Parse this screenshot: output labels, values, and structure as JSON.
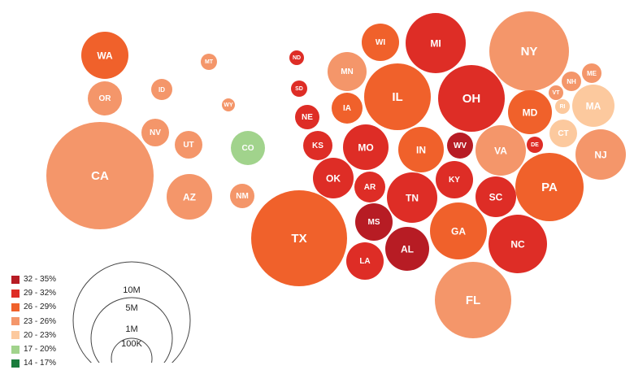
{
  "legend": {
    "color_bins": [
      {
        "label": "32 - 35%",
        "color": "#b71c24"
      },
      {
        "label": "29 - 32%",
        "color": "#de2d26"
      },
      {
        "label": "26 - 29%",
        "color": "#f0612b"
      },
      {
        "label": "23 - 26%",
        "color": "#f4966a"
      },
      {
        "label": "20 - 23%",
        "color": "#fcc99e"
      },
      {
        "label": "17 - 20%",
        "color": "#a1d38c"
      },
      {
        "label": "14 - 17%",
        "color": "#1a7c3c"
      }
    ],
    "size_labels": [
      "10M",
      "5M",
      "1M",
      "100K"
    ]
  },
  "states": [
    {
      "abbr": "WA",
      "bin": 2
    },
    {
      "abbr": "OR",
      "bin": 3
    },
    {
      "abbr": "CA",
      "bin": 3
    },
    {
      "abbr": "NV",
      "bin": 3
    },
    {
      "abbr": "ID",
      "bin": 3
    },
    {
      "abbr": "MT",
      "bin": 3
    },
    {
      "abbr": "WY",
      "bin": 3
    },
    {
      "abbr": "UT",
      "bin": 3
    },
    {
      "abbr": "AZ",
      "bin": 3
    },
    {
      "abbr": "CO",
      "bin": 5
    },
    {
      "abbr": "NM",
      "bin": 3
    },
    {
      "abbr": "ND",
      "bin": 1
    },
    {
      "abbr": "SD",
      "bin": 1
    },
    {
      "abbr": "NE",
      "bin": 1
    },
    {
      "abbr": "KS",
      "bin": 1
    },
    {
      "abbr": "OK",
      "bin": 1
    },
    {
      "abbr": "TX",
      "bin": 2
    },
    {
      "abbr": "MN",
      "bin": 3
    },
    {
      "abbr": "IA",
      "bin": 2
    },
    {
      "abbr": "MO",
      "bin": 1
    },
    {
      "abbr": "AR",
      "bin": 1
    },
    {
      "abbr": "LA",
      "bin": 1
    },
    {
      "abbr": "WI",
      "bin": 2
    },
    {
      "abbr": "IL",
      "bin": 2
    },
    {
      "abbr": "MS",
      "bin": 0
    },
    {
      "abbr": "MI",
      "bin": 1
    },
    {
      "abbr": "IN",
      "bin": 2
    },
    {
      "abbr": "TN",
      "bin": 1
    },
    {
      "abbr": "AL",
      "bin": 0
    },
    {
      "abbr": "OH",
      "bin": 1
    },
    {
      "abbr": "KY",
      "bin": 1
    },
    {
      "abbr": "WV",
      "bin": 0
    },
    {
      "abbr": "GA",
      "bin": 2
    },
    {
      "abbr": "FL",
      "bin": 3
    },
    {
      "abbr": "SC",
      "bin": 1
    },
    {
      "abbr": "NC",
      "bin": 1
    },
    {
      "abbr": "VA",
      "bin": 3
    },
    {
      "abbr": "PA",
      "bin": 2
    },
    {
      "abbr": "NY",
      "bin": 3
    },
    {
      "abbr": "MD",
      "bin": 2
    },
    {
      "abbr": "DE",
      "bin": 1
    },
    {
      "abbr": "NJ",
      "bin": 3
    },
    {
      "abbr": "CT",
      "bin": 4
    },
    {
      "abbr": "RI",
      "bin": 4
    },
    {
      "abbr": "MA",
      "bin": 4
    },
    {
      "abbr": "VT",
      "bin": 3
    },
    {
      "abbr": "NH",
      "bin": 3
    },
    {
      "abbr": "ME",
      "bin": 3
    }
  ]
}
